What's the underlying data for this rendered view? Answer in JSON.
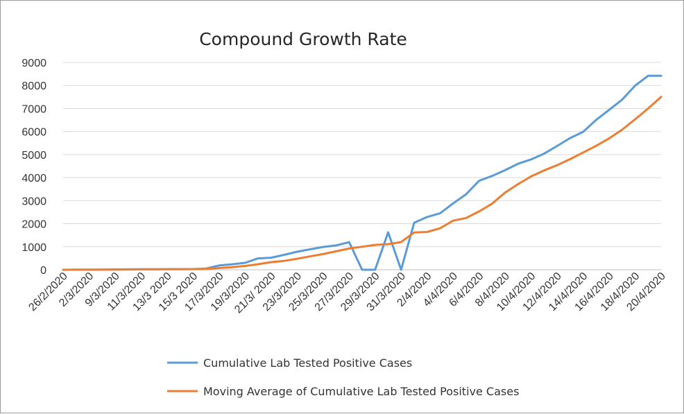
{
  "chart_data": {
    "type": "line",
    "title": "Compound  Growth Rate",
    "xlabel": "",
    "ylabel": "",
    "ylim": [
      0,
      9000
    ],
    "yticks": [
      0,
      1000,
      2000,
      3000,
      4000,
      5000,
      6000,
      7000,
      8000,
      9000
    ],
    "grid": true,
    "legend_position": "bottom",
    "x_tick_labels": [
      "26/2/2020",
      "2/3/2020",
      "9/3/2020",
      "11/3/2020",
      "13/3 2020",
      "15/3 2020",
      "17/3/2020",
      "19/3/2020",
      "21/3/ 2020",
      "23/3/2020",
      "25/3/2020",
      "27/3/2020",
      "29/3/2020",
      "31/3/2020",
      "2/4/2020",
      "4/4/2020",
      "6/4/2020",
      "8/4/2020",
      "10/4/2020",
      "12/4/2020",
      "14/4/2020",
      "16/4/2020",
      "18/4/2020",
      "20/4/2020"
    ],
    "x": [
      "26/2/2020",
      "1/3/2020",
      "2/3/2020",
      "8/3/2020",
      "9/3/2020",
      "10/3/2020",
      "11/3/2020",
      "12/3/2020",
      "13/3 2020",
      "14/3/2020",
      "15/3 2020",
      "16/3/2020",
      "17/3/2020",
      "18/3/2020",
      "19/3/2020",
      "20/3/2020",
      "21/3/ 2020",
      "22/3/2020",
      "23/3/2020",
      "24/3/2020",
      "25/3/2020",
      "26/3/2020",
      "27/3/2020",
      "28/3/2020",
      "29/3/2020",
      "30/3/2020",
      "31/3/2020",
      "1/4/2020",
      "2/4/2020",
      "3/4/2020",
      "4/4/2020",
      "5/4/2020",
      "6/4/2020",
      "7/4/2020",
      "8/4/2020",
      "9/4/2020",
      "10/4/2020",
      "11/4/2020",
      "12/4/2020",
      "13/4/2020",
      "14/4/2020",
      "15/4/2020",
      "16/4/2020",
      "17/4/2020",
      "18/4/2020",
      "19/4/2020",
      "20/4/2020"
    ],
    "series": [
      {
        "name": "Cumulative Lab Tested Positive Cases",
        "color": "#5b9bd5",
        "values": [
          1,
          2,
          4,
          5,
          16,
          19,
          20,
          21,
          28,
          28,
          31,
          53,
          186,
          237,
          302,
          495,
          524,
          646,
          784,
          887,
          991,
          1057,
          1197,
          0,
          0,
          1625,
          0,
          2039,
          2291,
          2450,
          2880,
          3277,
          3864,
          4072,
          4322,
          4601,
          4788,
          5038,
          5374,
          5716,
          5988,
          6505,
          6937,
          7385,
          7993,
          8418,
          8418
        ]
      },
      {
        "name": "Moving Average of Cumulative Lab Tested Positive Cases",
        "color": "#ed7d31",
        "values": [
          1,
          2,
          3,
          4,
          8,
          13,
          17,
          19,
          22,
          25,
          28,
          38,
          75,
          115,
          165,
          240,
          330,
          385,
          480,
          580,
          680,
          800,
          920,
          1000,
          1080,
          1110,
          1200,
          1620,
          1640,
          1800,
          2130,
          2250,
          2530,
          2870,
          3350,
          3720,
          4050,
          4310,
          4540,
          4800,
          5090,
          5380,
          5700,
          6080,
          6530,
          7000,
          7500
        ]
      }
    ]
  }
}
